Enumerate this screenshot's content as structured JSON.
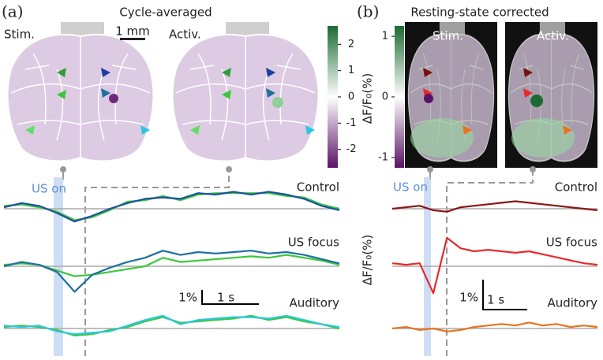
{
  "panel_a": {
    "label": "(a)",
    "title": "Cycle-averaged",
    "images": [
      "Stim.",
      "Activ."
    ],
    "scale_bar": "1 mm",
    "colorbar": {
      "lim": [
        -2.7,
        2.7
      ],
      "ticks": [
        2,
        1,
        0,
        -1,
        -2
      ]
    },
    "us_on": "US on",
    "scale_y": "1%",
    "scale_x": "1 s",
    "traces": [
      {
        "label": "Control",
        "series": [
          {
            "color": "#3cc83c",
            "values": [
              0.2,
              0.3,
              0.1,
              -0.2,
              -0.8,
              -0.6,
              -0.1,
              0.5,
              0.6,
              0.9,
              0.6,
              1.0,
              1.1,
              1.1,
              1.1,
              1.1,
              0.9,
              0.8,
              0.3,
              0
            ]
          },
          {
            "color": "#1d4fa3",
            "values": [
              0.1,
              0.4,
              0.2,
              -0.3,
              -0.9,
              -0.5,
              0,
              0.4,
              0.7,
              0.8,
              0.7,
              1.1,
              1.0,
              1.2,
              1.0,
              1.2,
              1.0,
              0.7,
              0.2,
              -0.1
            ]
          }
        ]
      },
      {
        "label": "US focus",
        "series": [
          {
            "color": "#3cc83c",
            "values": [
              0.1,
              0.2,
              0.1,
              -0.3,
              -0.7,
              -0.6,
              -0.4,
              -0.2,
              0,
              0.6,
              0.3,
              0.4,
              0.5,
              0.6,
              0.7,
              0.6,
              0.8,
              0.6,
              0.4,
              0.1
            ]
          },
          {
            "color": "#1f6fa0",
            "values": [
              0,
              0.3,
              0.1,
              -0.4,
              -1.8,
              -0.6,
              -0.1,
              0.3,
              0.6,
              1.1,
              0.8,
              1.0,
              0.9,
              1.0,
              1.1,
              0.9,
              1.0,
              0.8,
              0.5,
              0.2
            ]
          }
        ]
      },
      {
        "label": "Auditory",
        "series": [
          {
            "color": "#3cc83c",
            "values": [
              0.1,
              0.2,
              0.1,
              -0.1,
              -0.5,
              -0.4,
              -0.1,
              0.1,
              0.5,
              0.8,
              0.4,
              0.5,
              0.6,
              0.7,
              0.9,
              0.6,
              0.8,
              0.5,
              0.3,
              0
            ]
          },
          {
            "color": "#2cc7e0",
            "values": [
              0.2,
              0.1,
              0.2,
              -0.2,
              -0.4,
              -0.3,
              -0.2,
              0.2,
              0.6,
              0.9,
              0.3,
              0.6,
              0.7,
              0.8,
              0.8,
              0.7,
              0.9,
              0.6,
              0.3,
              0.1
            ]
          }
        ]
      }
    ]
  },
  "panel_b": {
    "label": "(b)",
    "title": "Resting-state corrected",
    "images": [
      "Stim.",
      "Activ."
    ],
    "colorbar": {
      "lim": [
        -1.17,
        1.17
      ],
      "ticks": [
        1,
        0,
        -1
      ],
      "label": "ΔF/F₀(%)"
    },
    "y_label": "ΔF/F₀(%)",
    "us_on": "US on",
    "scale_y": "1%",
    "scale_x": "1 s",
    "traces": [
      {
        "label": "Control",
        "series": [
          {
            "color": "#8b1515",
            "values": [
              0,
              0.05,
              0.1,
              -0.05,
              -0.1,
              0.05,
              0.1,
              0.15,
              0.2,
              0.25,
              0.2,
              0.15,
              0.1,
              0.05,
              0,
              -0.05
            ]
          }
        ]
      },
      {
        "label": "US focus",
        "series": [
          {
            "color": "#e8292c",
            "values": [
              0.1,
              0.05,
              0.1,
              -0.9,
              0.95,
              0.6,
              0.5,
              0.55,
              0.5,
              0.45,
              0.5,
              0.4,
              0.3,
              0.2,
              0.1,
              0.05
            ]
          }
        ]
      },
      {
        "label": "Auditory",
        "series": [
          {
            "color": "#e8731e",
            "values": [
              0,
              0.05,
              -0.05,
              0,
              -0.1,
              -0.05,
              0.05,
              0.1,
              0.15,
              0.1,
              0.2,
              0.1,
              0.15,
              0.05,
              0.1,
              0.05
            ]
          }
        ]
      }
    ]
  }
}
